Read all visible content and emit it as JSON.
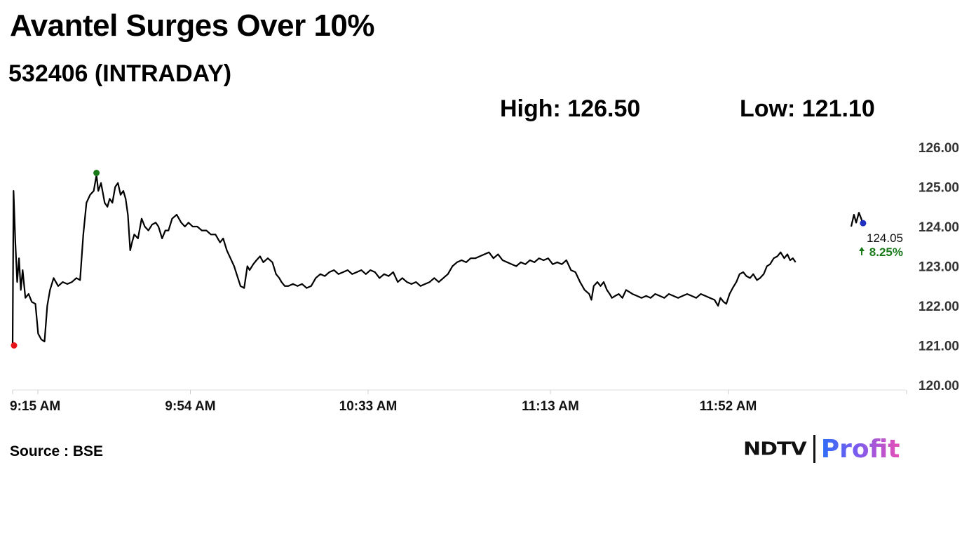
{
  "header": {
    "title": "Avantel Surges Over 10%",
    "subtitle": "532406 (INTRADAY)",
    "high_label": "High: 126.50",
    "low_label": "Low: 121.10"
  },
  "footer": {
    "source": "Source : BSE",
    "logo_left": "NDTV",
    "logo_right": "Profit"
  },
  "chart_data": {
    "type": "line",
    "title": "Avantel Surges Over 10%",
    "subtitle": "532406 (INTRADAY)",
    "x_ticks": [
      "9:15 AM",
      "9:54 AM",
      "10:33 AM",
      "11:13 AM",
      "11:52 AM"
    ],
    "x_range_minutes": [
      0,
      196
    ],
    "y_ticks": [
      "126.00",
      "125.00",
      "124.00",
      "123.00",
      "122.00",
      "121.00",
      "120.00"
    ],
    "ylim": [
      120,
      126
    ],
    "last_value": "124.05",
    "change_label": "8.25%",
    "colors": {
      "line": "#000000",
      "low_marker": "#e8141b",
      "high_marker": "#1a7a1a",
      "last_marker": "#1f2fbf",
      "change": "#1a7a1a",
      "axis": "#dddddd"
    },
    "series": [
      {
        "values": [
          [
            0,
            121.0
          ],
          [
            0.2,
            124.9
          ],
          [
            0.6,
            123.6
          ],
          [
            1.0,
            122.6
          ],
          [
            1.4,
            123.2
          ],
          [
            1.8,
            122.4
          ],
          [
            2.2,
            122.9
          ],
          [
            2.8,
            122.2
          ],
          [
            3.5,
            122.3
          ],
          [
            4.2,
            122.1
          ],
          [
            5.0,
            122.05
          ],
          [
            5.6,
            121.3
          ],
          [
            6.3,
            121.15
          ],
          [
            7.0,
            121.1
          ],
          [
            7.6,
            122.0
          ],
          [
            8.2,
            122.4
          ],
          [
            9.0,
            122.7
          ],
          [
            10.0,
            122.5
          ],
          [
            11.0,
            122.6
          ],
          [
            12.0,
            122.55
          ],
          [
            13.0,
            122.6
          ],
          [
            14.0,
            122.7
          ],
          [
            14.8,
            122.65
          ],
          [
            15.5,
            123.8
          ],
          [
            16.2,
            124.6
          ],
          [
            17.0,
            124.8
          ],
          [
            17.8,
            124.9
          ],
          [
            18.4,
            125.3
          ],
          [
            18.8,
            124.9
          ],
          [
            19.4,
            125.1
          ],
          [
            20.2,
            124.6
          ],
          [
            20.8,
            124.5
          ],
          [
            21.3,
            124.7
          ],
          [
            21.9,
            124.6
          ],
          [
            22.5,
            125.0
          ],
          [
            23.1,
            125.1
          ],
          [
            23.7,
            124.8
          ],
          [
            24.3,
            124.9
          ],
          [
            24.8,
            124.7
          ],
          [
            25.3,
            124.3
          ],
          [
            25.8,
            123.4
          ],
          [
            26.2,
            123.6
          ],
          [
            26.7,
            123.8
          ],
          [
            27.5,
            123.7
          ],
          [
            28.3,
            124.2
          ],
          [
            29.0,
            124.0
          ],
          [
            29.8,
            123.9
          ],
          [
            30.6,
            124.05
          ],
          [
            31.4,
            124.1
          ],
          [
            32.0,
            124.0
          ],
          [
            32.8,
            123.7
          ],
          [
            33.5,
            123.9
          ],
          [
            34.2,
            123.9
          ],
          [
            35.0,
            124.2
          ],
          [
            36.0,
            124.3
          ],
          [
            37.0,
            124.1
          ],
          [
            37.8,
            124.0
          ],
          [
            38.6,
            124.1
          ],
          [
            39.5,
            124.0
          ],
          [
            40.5,
            124.0
          ],
          [
            41.5,
            123.9
          ],
          [
            42.5,
            123.9
          ],
          [
            43.5,
            123.8
          ],
          [
            44.5,
            123.8
          ],
          [
            45.5,
            123.6
          ],
          [
            46.2,
            123.7
          ],
          [
            47.0,
            123.4
          ],
          [
            47.8,
            123.2
          ],
          [
            48.6,
            123.0
          ],
          [
            49.3,
            122.75
          ],
          [
            50.0,
            122.5
          ],
          [
            50.8,
            122.45
          ],
          [
            51.5,
            123.0
          ],
          [
            52.0,
            122.9
          ],
          [
            52.8,
            123.05
          ],
          [
            53.5,
            123.15
          ],
          [
            54.3,
            123.25
          ],
          [
            55.0,
            123.1
          ],
          [
            56.0,
            123.2
          ],
          [
            57.0,
            123.1
          ],
          [
            57.8,
            122.8
          ],
          [
            58.5,
            122.7
          ],
          [
            59.0,
            122.6
          ],
          [
            59.7,
            122.5
          ],
          [
            60.5,
            122.5
          ],
          [
            61.5,
            122.55
          ],
          [
            62.5,
            122.5
          ],
          [
            63.5,
            122.55
          ],
          [
            64.5,
            122.45
          ],
          [
            65.5,
            122.5
          ],
          [
            66.5,
            122.7
          ],
          [
            67.5,
            122.8
          ],
          [
            68.5,
            122.75
          ],
          [
            69.5,
            122.85
          ],
          [
            70.5,
            122.9
          ],
          [
            71.5,
            122.8
          ],
          [
            72.5,
            122.85
          ],
          [
            73.5,
            122.9
          ],
          [
            74.5,
            122.8
          ],
          [
            75.5,
            122.85
          ],
          [
            76.5,
            122.9
          ],
          [
            77.5,
            122.8
          ],
          [
            78.5,
            122.9
          ],
          [
            79.5,
            122.85
          ],
          [
            80.5,
            122.7
          ],
          [
            81.5,
            122.8
          ],
          [
            82.5,
            122.75
          ],
          [
            83.5,
            122.85
          ],
          [
            84.5,
            122.6
          ],
          [
            85.5,
            122.7
          ],
          [
            86.5,
            122.6
          ],
          [
            87.5,
            122.55
          ],
          [
            88.5,
            122.6
          ],
          [
            89.5,
            122.5
          ],
          [
            90.5,
            122.55
          ],
          [
            91.5,
            122.6
          ],
          [
            92.5,
            122.7
          ],
          [
            93.5,
            122.6
          ],
          [
            94.5,
            122.7
          ],
          [
            95.5,
            122.8
          ],
          [
            96.5,
            123.0
          ],
          [
            97.5,
            123.1
          ],
          [
            98.5,
            123.15
          ],
          [
            99.5,
            123.1
          ],
          [
            100.5,
            123.2
          ],
          [
            101.5,
            123.2
          ],
          [
            102.5,
            123.25
          ],
          [
            103.5,
            123.3
          ],
          [
            104.5,
            123.35
          ],
          [
            105.5,
            123.2
          ],
          [
            106.5,
            123.3
          ],
          [
            107.5,
            123.15
          ],
          [
            108.5,
            123.1
          ],
          [
            109.5,
            123.05
          ],
          [
            110.5,
            123.0
          ],
          [
            111.5,
            123.1
          ],
          [
            112.5,
            123.05
          ],
          [
            113.5,
            123.15
          ],
          [
            114.5,
            123.1
          ],
          [
            115.5,
            123.2
          ],
          [
            116.5,
            123.15
          ],
          [
            117.5,
            123.2
          ],
          [
            118.5,
            123.05
          ],
          [
            119.5,
            123.1
          ],
          [
            120.5,
            123.05
          ],
          [
            121.5,
            123.15
          ],
          [
            122.5,
            122.9
          ],
          [
            123.5,
            122.85
          ],
          [
            124.5,
            122.6
          ],
          [
            125.5,
            122.4
          ],
          [
            126.5,
            122.3
          ],
          [
            127.0,
            122.15
          ],
          [
            127.5,
            122.5
          ],
          [
            128.3,
            122.6
          ],
          [
            129.0,
            122.5
          ],
          [
            129.7,
            122.6
          ],
          [
            130.4,
            122.4
          ],
          [
            131.0,
            122.3
          ],
          [
            131.5,
            122.2
          ],
          [
            132.2,
            122.25
          ],
          [
            133.0,
            122.3
          ],
          [
            133.8,
            122.2
          ],
          [
            134.6,
            122.4
          ],
          [
            135.3,
            122.35
          ],
          [
            136.0,
            122.3
          ],
          [
            137.0,
            122.25
          ],
          [
            138.0,
            122.2
          ],
          [
            139.0,
            122.25
          ],
          [
            140.0,
            122.2
          ],
          [
            141.0,
            122.3
          ],
          [
            142.0,
            122.25
          ],
          [
            143.0,
            122.2
          ],
          [
            144.0,
            122.3
          ],
          [
            145.0,
            122.25
          ],
          [
            146.0,
            122.2
          ],
          [
            147.0,
            122.25
          ],
          [
            148.0,
            122.3
          ],
          [
            149.0,
            122.25
          ],
          [
            150.0,
            122.2
          ],
          [
            151.0,
            122.3
          ],
          [
            152.0,
            122.25
          ],
          [
            153.0,
            122.2
          ],
          [
            154.0,
            122.15
          ],
          [
            154.8,
            122.0
          ],
          [
            155.3,
            122.2
          ],
          [
            156.0,
            122.1
          ],
          [
            156.6,
            122.05
          ],
          [
            157.3,
            122.3
          ],
          [
            158.0,
            122.45
          ],
          [
            158.8,
            122.6
          ],
          [
            159.5,
            122.8
          ],
          [
            160.3,
            122.85
          ],
          [
            161.0,
            122.75
          ],
          [
            161.8,
            122.7
          ],
          [
            162.5,
            122.8
          ],
          [
            163.3,
            122.65
          ],
          [
            164.0,
            122.7
          ],
          [
            164.8,
            122.8
          ],
          [
            165.5,
            123.0
          ],
          [
            166.2,
            123.05
          ],
          [
            167.0,
            123.2
          ],
          [
            167.8,
            123.25
          ],
          [
            168.5,
            123.35
          ],
          [
            169.3,
            123.2
          ],
          [
            170.0,
            123.3
          ],
          [
            170.6,
            123.15
          ],
          [
            171.2,
            123.2
          ],
          [
            171.8,
            123.1
          ],
          [
            184.0,
            124.0
          ],
          [
            184.6,
            124.3
          ],
          [
            185.1,
            124.1
          ],
          [
            185.7,
            124.35
          ],
          [
            186.2,
            124.2
          ],
          [
            186.6,
            124.05
          ]
        ]
      }
    ]
  }
}
